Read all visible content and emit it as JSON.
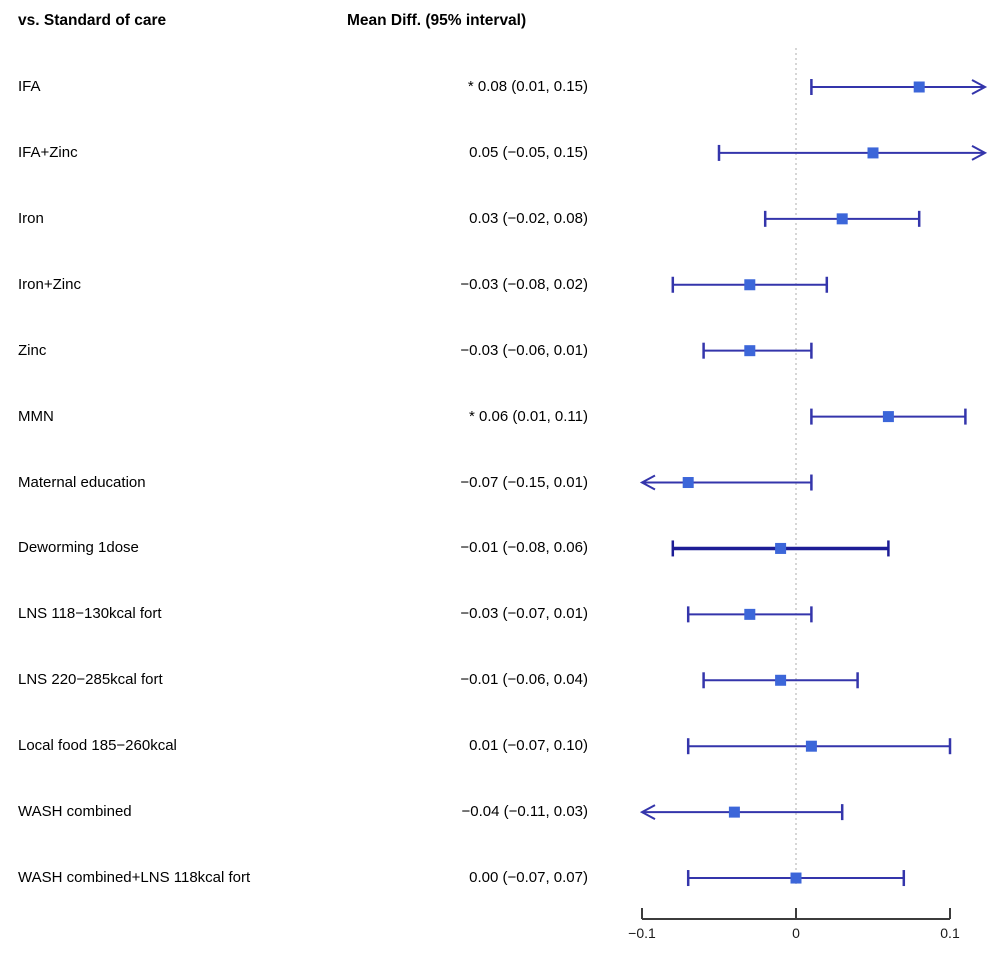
{
  "header": {
    "left": "vs. Standard of care",
    "right": "Mean Diff. (95% interval)"
  },
  "colors": {
    "ci_line": "#3435ab",
    "ci_line_thick": "#1d1d96",
    "marker": "#3c66d9",
    "reference_line": "#d6d6d6",
    "axis": "#3c3c3c",
    "text": "#000000"
  },
  "chart_data": {
    "type": "forest",
    "title": "",
    "xlabel": "",
    "xlim": [
      -0.1,
      0.123
    ],
    "grid": false,
    "x_axis": {
      "tick_values": [
        -0.1,
        0,
        0.1
      ],
      "tick_labels": [
        "−0.1",
        "0",
        "0.1"
      ],
      "reference_value": 0
    },
    "rows": [
      {
        "label": "IFA",
        "text": "* 0.08 (0.01, 0.15)",
        "mean": 0.08,
        "lower": 0.01,
        "upper": 0.15,
        "significant": true,
        "clip": "right",
        "thick": false
      },
      {
        "label": "IFA+Zinc",
        "text": "0.05 (−0.05, 0.15)",
        "mean": 0.05,
        "lower": -0.05,
        "upper": 0.15,
        "significant": false,
        "clip": "right",
        "thick": false
      },
      {
        "label": "Iron",
        "text": "0.03 (−0.02, 0.08)",
        "mean": 0.03,
        "lower": -0.02,
        "upper": 0.08,
        "significant": false,
        "clip": null,
        "thick": false
      },
      {
        "label": "Iron+Zinc",
        "text": "−0.03 (−0.08, 0.02)",
        "mean": -0.03,
        "lower": -0.08,
        "upper": 0.02,
        "significant": false,
        "clip": null,
        "thick": false
      },
      {
        "label": "Zinc",
        "text": "−0.03 (−0.06, 0.01)",
        "mean": -0.03,
        "lower": -0.06,
        "upper": 0.01,
        "significant": false,
        "clip": null,
        "thick": false
      },
      {
        "label": "MMN",
        "text": "* 0.06 (0.01, 0.11)",
        "mean": 0.06,
        "lower": 0.01,
        "upper": 0.11,
        "significant": true,
        "clip": null,
        "thick": false
      },
      {
        "label": "Maternal education",
        "text": "−0.07 (−0.15, 0.01)",
        "mean": -0.07,
        "lower": -0.15,
        "upper": 0.01,
        "significant": false,
        "clip": "left",
        "thick": false
      },
      {
        "label": "Deworming 1dose",
        "text": "−0.01 (−0.08, 0.06)",
        "mean": -0.01,
        "lower": -0.08,
        "upper": 0.06,
        "significant": false,
        "clip": null,
        "thick": true
      },
      {
        "label": "LNS 118−130kcal fort",
        "text": "−0.03 (−0.07, 0.01)",
        "mean": -0.03,
        "lower": -0.07,
        "upper": 0.01,
        "significant": false,
        "clip": null,
        "thick": false
      },
      {
        "label": "LNS 220−285kcal fort",
        "text": "−0.01 (−0.06, 0.04)",
        "mean": -0.01,
        "lower": -0.06,
        "upper": 0.04,
        "significant": false,
        "clip": null,
        "thick": false
      },
      {
        "label": "Local food 185−260kcal",
        "text": "0.01 (−0.07, 0.10)",
        "mean": 0.01,
        "lower": -0.07,
        "upper": 0.1,
        "significant": false,
        "clip": null,
        "thick": false
      },
      {
        "label": "WASH combined",
        "text": "−0.04 (−0.11, 0.03)",
        "mean": -0.04,
        "lower": -0.11,
        "upper": 0.03,
        "significant": false,
        "clip": "left",
        "thick": false
      },
      {
        "label": "WASH combined+LNS 118kcal fort",
        "text": "0.00 (−0.07, 0.07)",
        "mean": 0.0,
        "lower": -0.07,
        "upper": 0.07,
        "significant": false,
        "clip": null,
        "thick": false
      }
    ]
  }
}
